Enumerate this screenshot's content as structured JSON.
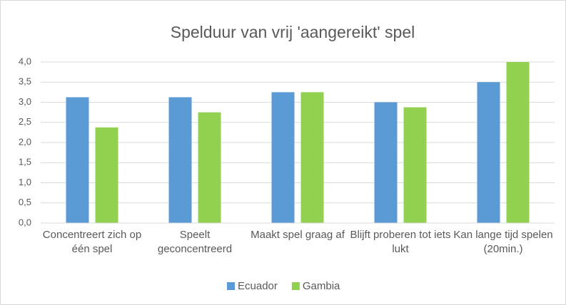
{
  "chart_data": {
    "type": "bar",
    "title": "Spelduur van vrij 'aangereikt' spel",
    "categories": [
      "Concentreert zich op één spel",
      "Speelt geconcentreerd",
      "Maakt spel graag af",
      "Blijft proberen tot iets lukt",
      "Kan lange tijd spelen (20min.)"
    ],
    "series": [
      {
        "name": "Ecuador",
        "color": "#5b9bd5",
        "values": [
          3.125,
          3.125,
          3.25,
          3.0,
          3.5
        ]
      },
      {
        "name": "Gambia",
        "color": "#92d050",
        "values": [
          2.375,
          2.75,
          3.25,
          2.875,
          4.0
        ]
      }
    ],
    "ylim": [
      0,
      4
    ],
    "yticks": [
      {
        "value": 0,
        "label": "0,0"
      },
      {
        "value": 0.5,
        "label": "0,5"
      },
      {
        "value": 1,
        "label": "1,0"
      },
      {
        "value": 1.5,
        "label": "1,5"
      },
      {
        "value": 2,
        "label": "2,0"
      },
      {
        "value": 2.5,
        "label": "2,5"
      },
      {
        "value": 3,
        "label": "3,0"
      },
      {
        "value": 3.5,
        "label": "3,5"
      },
      {
        "value": 4,
        "label": "4,0"
      }
    ],
    "grid": true,
    "legend": "bottom"
  }
}
